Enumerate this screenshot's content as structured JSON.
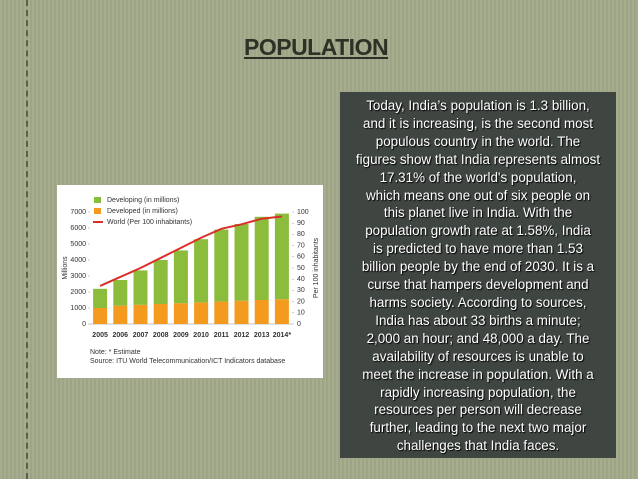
{
  "title": "POPULATION",
  "body_lines": [
    "Today, India’s population is 1.3 billion,",
    "and it is increasing, is the second most",
    "populous country in the world. The",
    "figures show that India represents almost",
    "17.31% of the world's population,",
    "which means one out of six people on",
    "this planet live in India.  With the",
    "population growth rate at 1.58%, India",
    "is predicted to have more than 1.53",
    "billion people by the end of 2030. It is a",
    "curse that hampers development and",
    "harms society. According to sources,",
    "India has about 33 births a minute;",
    "2,000 an hour; and 48,000 a day. The",
    "availability of resources is unable to",
    "meet the increase in population. With a",
    "rapidly increasing population, the",
    "resources per person will decrease",
    "further, leading to the next two major",
    "challenges that India faces."
  ],
  "figure": {
    "type": "bar",
    "y_label": "Millions",
    "y2_label": "Per 100 inhabitants",
    "categories": [
      "2005",
      "2006",
      "2007",
      "2008",
      "2009",
      "2010",
      "2011",
      "2012",
      "2013",
      "2014*"
    ],
    "series": [
      {
        "name": "Developing (in millions)",
        "color": "#8cbc3c",
        "values": [
          1200,
          1600,
          2150,
          2750,
          3300,
          3950,
          4500,
          4800,
          5200,
          5350
        ]
      },
      {
        "name": "Developed (in millions)",
        "color": "#f39a1f",
        "values": [
          1000,
          1150,
          1200,
          1250,
          1300,
          1350,
          1400,
          1450,
          1500,
          1550
        ]
      },
      {
        "name": "World (Per 100 inhabitants)",
        "color": "#d9302a",
        "axis": "y2",
        "type": "line",
        "values": [
          34,
          42,
          50,
          59,
          68,
          77,
          85,
          89,
          94,
          96
        ]
      }
    ],
    "ylim": [
      0,
      7000
    ],
    "yticks": [
      0,
      1000,
      2000,
      3000,
      4000,
      5000,
      6000,
      7000
    ],
    "y2lim": [
      0,
      100
    ],
    "y2ticks": [
      0,
      10,
      20,
      30,
      40,
      50,
      60,
      70,
      80,
      90,
      100
    ],
    "notes": [
      "Note: * Estimate",
      "Source: ITU World Telecommunication/ICT Indicators database"
    ]
  }
}
